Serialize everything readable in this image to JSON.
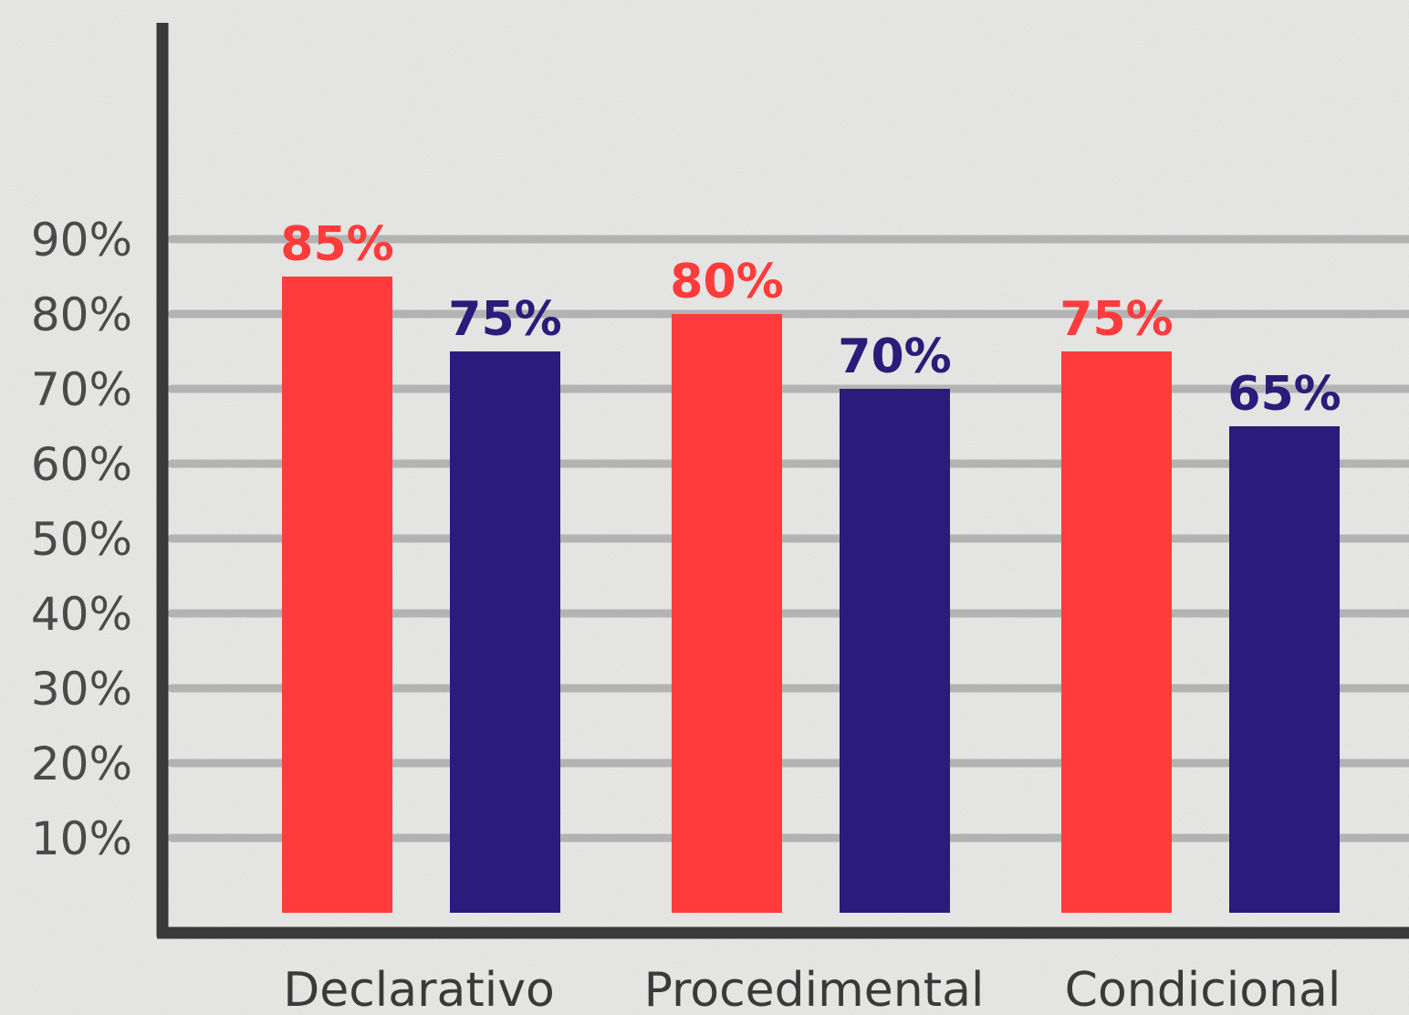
{
  "chart_data": {
    "type": "bar",
    "categories": [
      "Declarativo",
      "Procedimental",
      "Condicional"
    ],
    "series": [
      {
        "values": [
          85,
          80,
          75
        ],
        "color": "#ff3b3b"
      },
      {
        "values": [
          75,
          70,
          65
        ],
        "color": "#2b1b7a"
      }
    ],
    "ytick_labels": [
      "10%",
      "20%",
      "30%",
      "40%",
      "50%",
      "60%",
      "70%",
      "80%",
      "90%"
    ],
    "data_labels": [
      [
        "85%",
        "80%",
        "75%"
      ],
      [
        "75%",
        "70%",
        "65%"
      ]
    ],
    "ylim": [
      0,
      90
    ],
    "grid": true,
    "legend": "none",
    "colors": {
      "background": "#e8e8e6",
      "axis": "#3a3a3a",
      "grid": "#b3b3b3"
    }
  }
}
